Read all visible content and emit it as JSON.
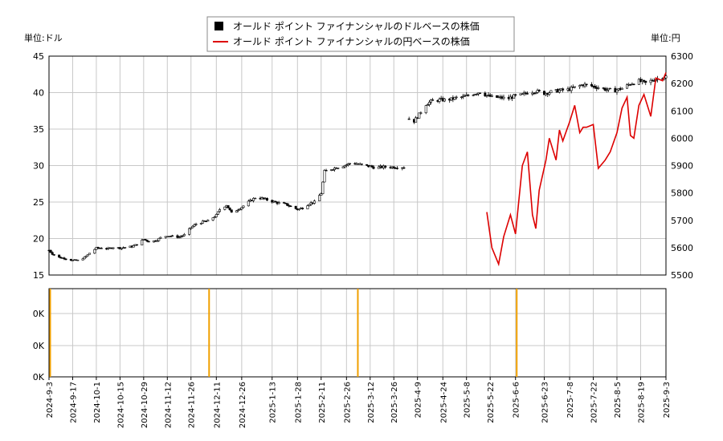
{
  "chart_data": {
    "type": "candlestick+line",
    "legend": {
      "placement": "top-center",
      "items": [
        {
          "label": "オールド ポイント ファイナンシャルのドルベースの株価",
          "marker": "square",
          "color": "#000000"
        },
        {
          "label": "オールド ポイント ファイナンシャルの円ベースの株価",
          "marker": "line",
          "color": "#dd0000"
        }
      ]
    },
    "left_axis": {
      "unit_label": "単位:ドル",
      "ylim": [
        15,
        45
      ],
      "ticks": [
        15,
        20,
        25,
        30,
        35,
        40,
        45
      ]
    },
    "right_axis": {
      "unit_label": "単位:円",
      "ylim": [
        5500,
        6300
      ],
      "ticks": [
        5500,
        5600,
        5700,
        5800,
        5900,
        6000,
        6100,
        6200,
        6300
      ]
    },
    "volume_axis": {
      "tick_labels": [
        "0K",
        "0K",
        "0K"
      ]
    },
    "x_ticks": [
      "2024-9-3",
      "2024-9-17",
      "2024-10-1",
      "2024-10-15",
      "2024-10-29",
      "2024-11-12",
      "2024-11-26",
      "2024-12-11",
      "2024-12-26",
      "2025-1-13",
      "2025-1-28",
      "2025-2-11",
      "2025-2-26",
      "2025-3-12",
      "2025-3-26",
      "2025-4-9",
      "2025-4-24",
      "2025-5-8",
      "2025-5-22",
      "2025-6-6",
      "2025-6-23",
      "2025-7-8",
      "2025-7-22",
      "2025-8-5",
      "2025-8-19",
      "2025-9-3"
    ],
    "grid": true,
    "usd_series": [
      [
        "2024-9-3",
        18.4
      ],
      [
        "2024-9-5",
        17.9
      ],
      [
        "2024-9-9",
        17.4
      ],
      [
        "2024-9-12",
        17.3
      ],
      [
        "2024-9-17",
        17.0
      ],
      [
        "2024-9-20",
        17.0
      ],
      [
        "2024-9-24",
        17.4
      ],
      [
        "2024-9-27",
        18.0
      ],
      [
        "2024-10-1",
        18.7
      ],
      [
        "2024-10-4",
        18.7
      ],
      [
        "2024-10-8",
        18.6
      ],
      [
        "2024-10-11",
        18.8
      ],
      [
        "2024-10-15",
        18.7
      ],
      [
        "2024-10-18",
        18.8
      ],
      [
        "2024-10-22",
        18.9
      ],
      [
        "2024-10-25",
        19.2
      ],
      [
        "2024-10-29",
        19.9
      ],
      [
        "2024-11-1",
        19.6
      ],
      [
        "2024-11-5",
        19.7
      ],
      [
        "2024-11-8",
        20.1
      ],
      [
        "2024-11-12",
        20.4
      ],
      [
        "2024-11-15",
        20.3
      ],
      [
        "2024-11-19",
        20.2
      ],
      [
        "2024-11-22",
        20.5
      ],
      [
        "2024-11-26",
        21.5
      ],
      [
        "2024-11-29",
        22.0
      ],
      [
        "2024-12-3",
        22.3
      ],
      [
        "2024-12-6",
        22.4
      ],
      [
        "2024-12-11",
        23.2
      ],
      [
        "2024-12-13",
        24.0
      ],
      [
        "2024-12-17",
        24.6
      ],
      [
        "2024-12-20",
        23.5
      ],
      [
        "2024-12-26",
        24.3
      ],
      [
        "2024-12-30",
        25.0
      ],
      [
        "2025-1-3",
        25.6
      ],
      [
        "2025-1-7",
        25.5
      ],
      [
        "2025-1-10",
        25.3
      ],
      [
        "2025-1-13",
        25.1
      ],
      [
        "2025-1-16",
        24.9
      ],
      [
        "2025-1-21",
        24.7
      ],
      [
        "2025-1-24",
        24.4
      ],
      [
        "2025-1-28",
        24.0
      ],
      [
        "2025-1-31",
        24.2
      ],
      [
        "2025-2-4",
        24.8
      ],
      [
        "2025-2-7",
        25.0
      ],
      [
        "2025-2-11",
        26.2
      ],
      [
        "2025-2-13",
        29.2
      ],
      [
        "2025-2-18",
        29.6
      ],
      [
        "2025-2-21",
        29.8
      ],
      [
        "2025-2-26",
        30.1
      ],
      [
        "2025-3-1",
        30.4
      ],
      [
        "2025-3-5",
        30.2
      ],
      [
        "2025-3-8",
        30.0
      ],
      [
        "2025-3-12",
        29.9
      ],
      [
        "2025-3-15",
        29.7
      ],
      [
        "2025-3-19",
        29.8
      ],
      [
        "2025-3-24",
        29.8
      ],
      [
        "2025-3-28",
        29.8
      ],
      [
        "2025-4-1",
        29.8
      ],
      [
        "2025-4-4",
        36.4
      ],
      [
        "2025-4-7",
        36.1
      ],
      [
        "2025-4-10",
        37.0
      ],
      [
        "2025-4-14",
        38.4
      ],
      [
        "2025-4-17",
        38.8
      ],
      [
        "2025-4-22",
        39.0
      ],
      [
        "2025-4-25",
        39.0
      ],
      [
        "2025-4-29",
        39.1
      ],
      [
        "2025-5-2",
        39.3
      ],
      [
        "2025-5-6",
        39.4
      ],
      [
        "2025-5-9",
        39.6
      ],
      [
        "2025-5-13",
        39.9
      ],
      [
        "2025-5-16",
        40.1
      ],
      [
        "2025-5-20",
        39.6
      ],
      [
        "2025-5-23",
        39.4
      ],
      [
        "2025-5-28",
        39.3
      ],
      [
        "2025-6-2",
        39.2
      ],
      [
        "2025-6-5",
        39.5
      ],
      [
        "2025-6-10",
        39.7
      ],
      [
        "2025-6-13",
        40.0
      ],
      [
        "2025-6-18",
        40.2
      ],
      [
        "2025-6-23",
        39.9
      ],
      [
        "2025-6-27",
        40.1
      ],
      [
        "2025-7-2",
        40.3
      ],
      [
        "2025-7-7",
        40.4
      ],
      [
        "2025-7-11",
        40.7
      ],
      [
        "2025-7-16",
        41.1
      ],
      [
        "2025-7-21",
        40.9
      ],
      [
        "2025-7-25",
        40.7
      ],
      [
        "2025-7-30",
        40.4
      ],
      [
        "2025-8-4",
        40.3
      ],
      [
        "2025-8-8",
        40.6
      ],
      [
        "2025-8-13",
        41.2
      ],
      [
        "2025-8-18",
        41.6
      ],
      [
        "2025-8-22",
        41.3
      ],
      [
        "2025-8-27",
        41.8
      ],
      [
        "2025-9-3",
        42.2
      ]
    ],
    "jpy_series": [
      [
        "2025-5-20",
        5730
      ],
      [
        "2025-5-23",
        5600
      ],
      [
        "2025-5-27",
        5540
      ],
      [
        "2025-5-30",
        5640
      ],
      [
        "2025-6-3",
        5720
      ],
      [
        "2025-6-6",
        5650
      ],
      [
        "2025-6-10",
        5900
      ],
      [
        "2025-6-13",
        5950
      ],
      [
        "2025-6-16",
        5720
      ],
      [
        "2025-6-18",
        5670
      ],
      [
        "2025-6-20",
        5810
      ],
      [
        "2025-6-24",
        5920
      ],
      [
        "2025-6-26",
        6000
      ],
      [
        "2025-6-30",
        5920
      ],
      [
        "2025-7-2",
        6030
      ],
      [
        "2025-7-4",
        5990
      ],
      [
        "2025-7-8",
        6060
      ],
      [
        "2025-7-11",
        6120
      ],
      [
        "2025-7-14",
        6020
      ],
      [
        "2025-7-16",
        6040
      ],
      [
        "2025-7-18",
        6040
      ],
      [
        "2025-7-22",
        6050
      ],
      [
        "2025-7-25",
        5890
      ],
      [
        "2025-7-29",
        5920
      ],
      [
        "2025-8-1",
        5950
      ],
      [
        "2025-8-5",
        6020
      ],
      [
        "2025-8-8",
        6110
      ],
      [
        "2025-8-11",
        6150
      ],
      [
        "2025-8-13",
        6010
      ],
      [
        "2025-8-15",
        6000
      ],
      [
        "2025-8-18",
        6120
      ],
      [
        "2025-8-21",
        6160
      ],
      [
        "2025-8-25",
        6080
      ],
      [
        "2025-8-28",
        6220
      ],
      [
        "2025-9-1",
        6210
      ],
      [
        "2025-9-3",
        6240
      ]
    ],
    "volume_markers": [
      "2024-9-3",
      "2024-12-6",
      "2025-3-4",
      "2025-6-6"
    ]
  }
}
